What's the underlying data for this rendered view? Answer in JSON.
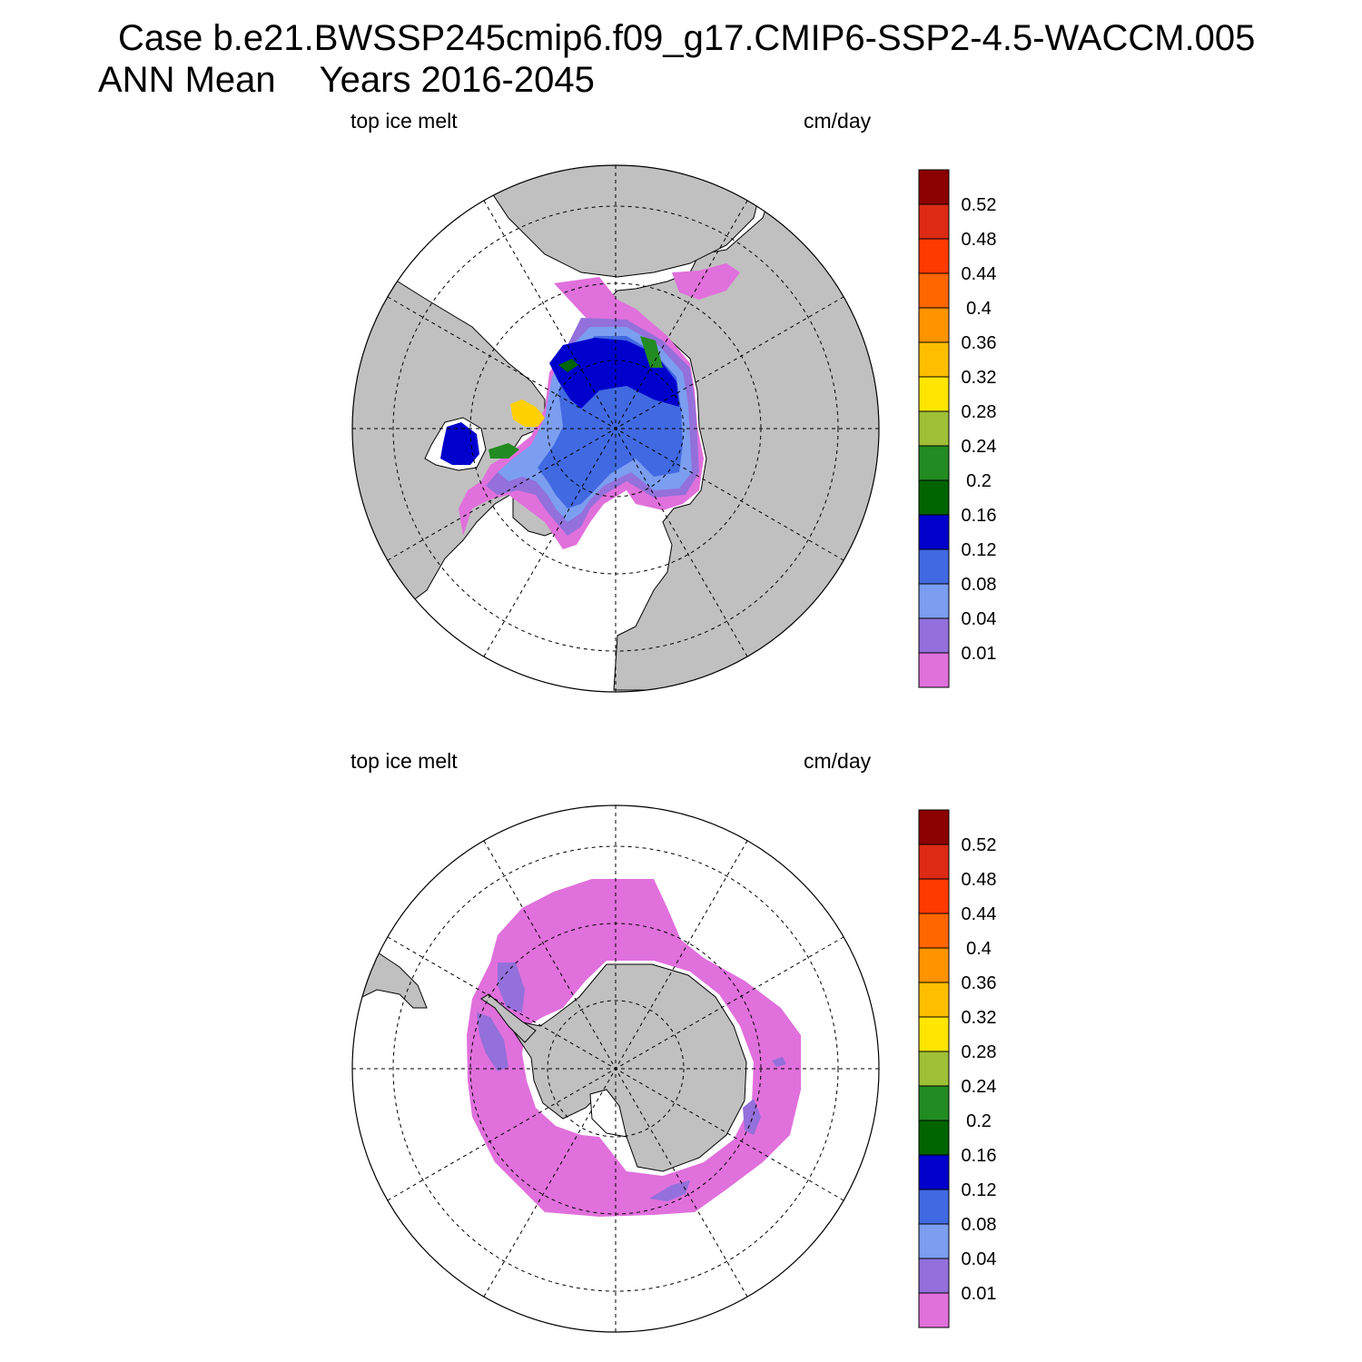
{
  "header": {
    "case_line": "Case b.e21.BWSSP245cmip6.f09_g17.CMIP6-SSP2-4.5-WACCM.005",
    "period_label": "ANN Mean",
    "years_label": "Years 2016-2045"
  },
  "colors": {
    "land": "#c0c0c0",
    "coast": "#000000",
    "grid": "#000000",
    "ocean": "#ffffff"
  },
  "colorbar": {
    "levels": [
      "0.52",
      "0.48",
      "0.44",
      "0.4",
      "0.36",
      "0.32",
      "0.28",
      "0.24",
      "0.2",
      "0.16",
      "0.12",
      "0.08",
      "0.04",
      "0.01"
    ],
    "colors": [
      "#8b0000",
      "#dd2a15",
      "#ff3a00",
      "#ff6600",
      "#ff9300",
      "#ffbf00",
      "#ffe600",
      "#9fbf36",
      "#228b22",
      "#006400",
      "#0000cd",
      "#4169e1",
      "#7b9ef0",
      "#9370db",
      "#e070dc"
    ]
  },
  "panels": [
    {
      "id": "north",
      "hemisphere": "Northern Hemisphere",
      "variable_label": "top ice melt",
      "units_label": "cm/day"
    },
    {
      "id": "south",
      "hemisphere": "Southern Hemisphere",
      "variable_label": "top ice melt",
      "units_label": "cm/day"
    }
  ]
}
